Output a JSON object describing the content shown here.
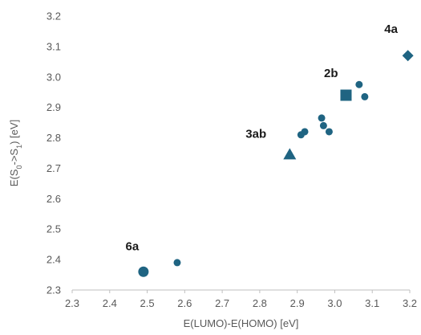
{
  "chart_data": {
    "type": "scatter",
    "title": "",
    "xlabel": "E(LUMO)-E(HOMO) [eV]",
    "ylabel_parts": {
      "pre": "E(S",
      "sub1": "0",
      "mid": "->S",
      "sub2": "1",
      "post": ") [eV]"
    },
    "xlim": [
      2.3,
      3.2
    ],
    "ylim": [
      2.3,
      3.2
    ],
    "xticks": [
      "2.3",
      "2.4",
      "2.5",
      "2.6",
      "2.7",
      "2.8",
      "2.9",
      "3.0",
      "3.1",
      "3.2"
    ],
    "yticks": [
      "2.3",
      "2.4",
      "2.5",
      "2.6",
      "2.7",
      "2.8",
      "2.9",
      "3.0",
      "3.1",
      "3.2"
    ],
    "grid": false,
    "marker_color": "#1f6482",
    "points": [
      {
        "x": 2.49,
        "y": 2.36,
        "marker": "circle-large"
      },
      {
        "x": 2.58,
        "y": 2.39,
        "marker": "circle"
      },
      {
        "x": 2.88,
        "y": 2.745,
        "marker": "triangle"
      },
      {
        "x": 2.91,
        "y": 2.81,
        "marker": "circle"
      },
      {
        "x": 2.92,
        "y": 2.82,
        "marker": "circle"
      },
      {
        "x": 2.965,
        "y": 2.865,
        "marker": "circle"
      },
      {
        "x": 2.97,
        "y": 2.84,
        "marker": "circle"
      },
      {
        "x": 2.985,
        "y": 2.82,
        "marker": "circle"
      },
      {
        "x": 3.03,
        "y": 2.94,
        "marker": "square"
      },
      {
        "x": 3.065,
        "y": 2.975,
        "marker": "circle"
      },
      {
        "x": 3.08,
        "y": 2.935,
        "marker": "circle"
      },
      {
        "x": 3.195,
        "y": 3.07,
        "marker": "diamond"
      }
    ],
    "annotations": [
      {
        "text": "6a",
        "x": 2.46,
        "y": 2.43
      },
      {
        "text": "3ab",
        "x": 2.79,
        "y": 2.8
      },
      {
        "text": "2b",
        "x": 2.99,
        "y": 3.0
      },
      {
        "text": "4a",
        "x": 3.15,
        "y": 3.145
      }
    ]
  }
}
